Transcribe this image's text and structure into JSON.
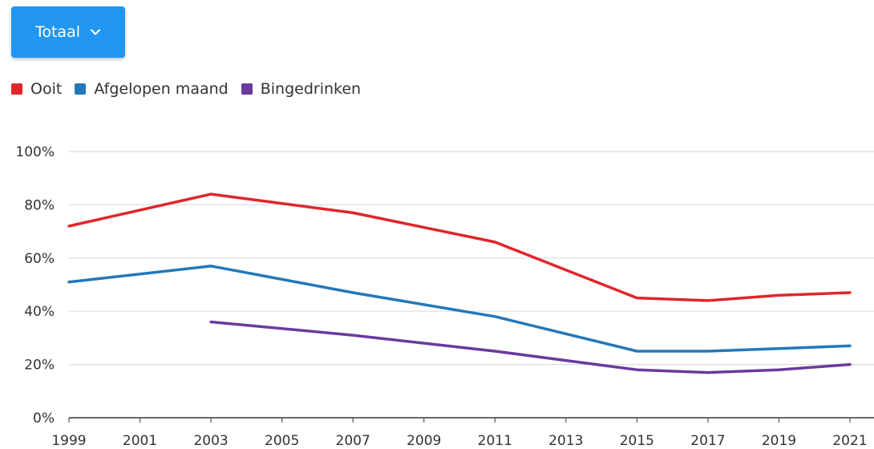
{
  "dropdown": {
    "label": "Totaal",
    "icon": "chevron-down-icon"
  },
  "chart_data": {
    "type": "line",
    "x": [
      "1999",
      "2001",
      "2003",
      "2005",
      "2007",
      "2009",
      "2011",
      "2013",
      "2015",
      "2017",
      "2019",
      "2021"
    ],
    "y_ticks": [
      "0%",
      "20%",
      "40%",
      "60%",
      "80%",
      "100%"
    ],
    "ylim": [
      0,
      100
    ],
    "y_unit": "%",
    "grid": true,
    "legend_position": "top-left",
    "series": [
      {
        "name": "Ooit",
        "color": "#e0262a",
        "points": [
          {
            "x": "1999",
            "y": 72
          },
          {
            "x": "2003",
            "y": 84
          },
          {
            "x": "2007",
            "y": 77
          },
          {
            "x": "2011",
            "y": 66
          },
          {
            "x": "2015",
            "y": 45
          },
          {
            "x": "2017",
            "y": 44
          },
          {
            "x": "2019",
            "y": 46
          },
          {
            "x": "2021",
            "y": 47
          }
        ]
      },
      {
        "name": "Afgelopen maand",
        "color": "#2478b8",
        "points": [
          {
            "x": "1999",
            "y": 51
          },
          {
            "x": "2003",
            "y": 57
          },
          {
            "x": "2007",
            "y": 47
          },
          {
            "x": "2011",
            "y": 38
          },
          {
            "x": "2015",
            "y": 25
          },
          {
            "x": "2017",
            "y": 25
          },
          {
            "x": "2019",
            "y": 26
          },
          {
            "x": "2021",
            "y": 27
          }
        ]
      },
      {
        "name": "Bingedrinken",
        "color": "#6a3a9e",
        "points": [
          {
            "x": "2003",
            "y": 36
          },
          {
            "x": "2007",
            "y": 31
          },
          {
            "x": "2011",
            "y": 25
          },
          {
            "x": "2015",
            "y": 18
          },
          {
            "x": "2017",
            "y": 17
          },
          {
            "x": "2019",
            "y": 18
          },
          {
            "x": "2021",
            "y": 20
          }
        ]
      }
    ]
  }
}
